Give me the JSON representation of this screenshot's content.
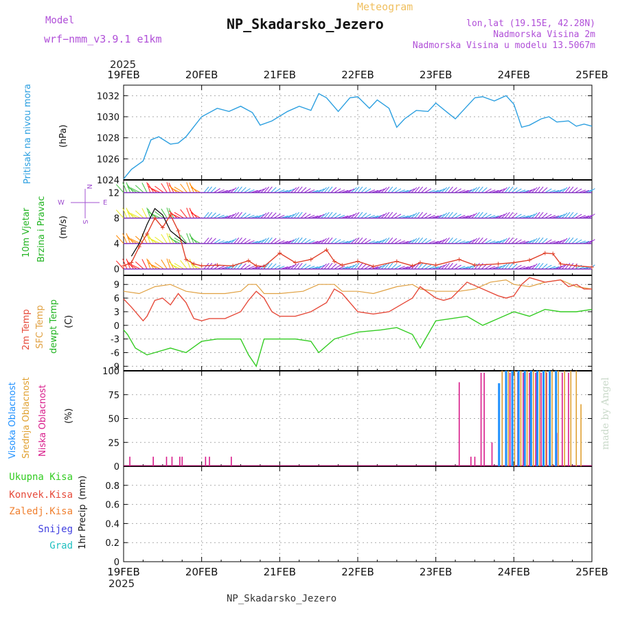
{
  "header": {
    "model_label": "Model",
    "model_value": "wrf−nmm_v3.9.1  e1km",
    "meteogram_label": "Meteogram",
    "station": "NP_Skadarsko_Jezero",
    "lonlat": "lon,lat (19.15E, 42.28N)",
    "elevation": "Nadmorska Visina 2m",
    "model_elevation": "Nadmorska Visina u modelu 13.5067m",
    "footer_station": "NP_Skadarsko_Jezero",
    "credit": "made by Angel"
  },
  "colors": {
    "pressure": "#2b9fe0",
    "temp2m": "#e64a3a",
    "sfc_temp": "#e0a040",
    "dewpoint": "#33cc22",
    "visoka": "#1e90ff",
    "srednja": "#e0a030",
    "niska": "#d81b8a",
    "wind_speed": "#e0402a",
    "wind_gust": "#000000",
    "title_purple": "#b04fd8"
  },
  "chart_data": [
    {
      "id": "pressure",
      "type": "line",
      "title": "",
      "year": "2025",
      "x_ticks": [
        "19FEB",
        "20FEB",
        "21FEB",
        "22FEB",
        "23FEB",
        "24FEB",
        "25FEB"
      ],
      "ylabel": "Pritisak na nivou mora",
      "yunit": "(hPa)",
      "ylim": [
        1024,
        1033
      ],
      "yticks": [
        1024,
        1026,
        1028,
        1030,
        1032
      ],
      "grid": true,
      "series": [
        {
          "x": [
            0,
            0.1,
            0.25,
            0.35,
            0.45,
            0.6,
            0.7,
            0.8,
            1.0,
            1.2,
            1.35,
            1.5,
            1.65,
            1.75,
            1.9,
            2.1,
            2.25,
            2.4,
            2.5,
            2.6,
            2.75,
            2.9,
            3.0,
            3.15,
            3.25,
            3.4,
            3.5,
            3.6,
            3.75,
            3.9,
            4.0,
            4.15,
            4.25,
            4.4,
            4.5,
            4.6,
            4.75,
            4.9,
            5.0,
            5.1,
            5.2,
            5.35,
            5.45,
            5.55,
            5.7,
            5.8,
            5.9,
            6.0
          ],
          "y": [
            1024.1,
            1025.0,
            1025.8,
            1027.8,
            1028.1,
            1027.4,
            1027.5,
            1028.1,
            1030.0,
            1030.8,
            1030.5,
            1031.0,
            1030.4,
            1029.2,
            1029.6,
            1030.5,
            1031.0,
            1030.6,
            1032.2,
            1031.8,
            1030.5,
            1031.8,
            1031.9,
            1030.8,
            1031.6,
            1030.8,
            1029.0,
            1029.8,
            1030.6,
            1030.5,
            1031.3,
            1030.4,
            1029.8,
            1031.0,
            1031.8,
            1031.9,
            1031.5,
            1032.0,
            1031.2,
            1029.0,
            1029.2,
            1029.8,
            1030.0,
            1029.5,
            1029.6,
            1029.1,
            1029.3,
            1029.1
          ]
        }
      ]
    },
    {
      "id": "wind",
      "type": "line",
      "title": "",
      "ylabels": [
        "10m Vjetar",
        "Brzina i Pravac"
      ],
      "yunit": "(m/s)",
      "compass": [
        "N",
        "W",
        "E",
        "S"
      ],
      "ylim": [
        -1,
        14
      ],
      "yticks": [
        0,
        4,
        8,
        12
      ],
      "barb_levels": [
        0,
        4,
        8,
        12
      ],
      "grid": true,
      "series": [
        {
          "name": "speed",
          "x": [
            0,
            0.1,
            0.2,
            0.3,
            0.4,
            0.5,
            0.6,
            0.7,
            0.8,
            0.9,
            1.0,
            1.2,
            1.4,
            1.6,
            1.7,
            1.8,
            2.0,
            2.2,
            2.4,
            2.6,
            2.7,
            2.8,
            3.0,
            3.2,
            3.5,
            3.7,
            3.8,
            4.0,
            4.3,
            4.5,
            4.8,
            5.0,
            5.2,
            5.4,
            5.5,
            5.6,
            5.8,
            6.0
          ],
          "y": [
            0.5,
            1.0,
            3.5,
            5.5,
            8.0,
            6.5,
            8.5,
            6.0,
            1.5,
            0.8,
            0.5,
            0.6,
            0.5,
            1.3,
            0.5,
            0.4,
            2.5,
            1.0,
            1.5,
            3.0,
            1.2,
            0.6,
            1.2,
            0.4,
            1.2,
            0.5,
            1.0,
            0.6,
            1.5,
            0.6,
            0.8,
            1.0,
            1.4,
            2.5,
            2.4,
            0.8,
            0.5,
            0.3
          ]
        },
        {
          "name": "gust",
          "x": [
            0.1,
            0.2,
            0.3,
            0.4,
            0.5,
            0.6,
            0.7,
            0.8
          ],
          "y": [
            2.0,
            4.0,
            7.0,
            9.5,
            8.5,
            6.0,
            5.0,
            4.0
          ]
        }
      ]
    },
    {
      "id": "temperature",
      "type": "line",
      "title": "",
      "ylabels": [
        "2m Temp",
        "SFC Temp",
        "dewpt Temp"
      ],
      "yunit": "(C)",
      "ylim": [
        -10,
        11
      ],
      "yticks": [
        9,
        6,
        3,
        0,
        -3,
        -6,
        -9
      ],
      "grid": true,
      "series": [
        {
          "name": "2m Temp",
          "x": [
            0,
            0.1,
            0.25,
            0.3,
            0.4,
            0.5,
            0.6,
            0.7,
            0.8,
            0.9,
            1.0,
            1.1,
            1.3,
            1.5,
            1.6,
            1.7,
            1.8,
            1.9,
            2.0,
            2.2,
            2.4,
            2.6,
            2.7,
            2.8,
            3.0,
            3.2,
            3.4,
            3.6,
            3.7,
            3.8,
            4.0,
            4.1,
            4.2,
            4.4,
            4.6,
            4.8,
            4.9,
            5.0,
            5.1,
            5.2,
            5.4,
            5.6,
            5.7,
            5.8,
            5.9,
            6.0
          ],
          "y": [
            5.8,
            4.0,
            1.0,
            2.0,
            5.5,
            6.0,
            4.5,
            7.0,
            5.0,
            1.5,
            1.0,
            1.5,
            1.5,
            3.0,
            5.5,
            7.5,
            6.0,
            3.0,
            2.0,
            2.0,
            3.0,
            5.0,
            8.0,
            7.0,
            3.0,
            2.5,
            3.0,
            5.0,
            6.0,
            8.5,
            6.0,
            5.5,
            6.0,
            9.5,
            8.0,
            6.5,
            6.0,
            6.5,
            9.0,
            10.5,
            9.5,
            10.0,
            8.5,
            9.0,
            8.0,
            8.0
          ]
        },
        {
          "name": "SFC Temp",
          "x": [
            0,
            0.2,
            0.4,
            0.6,
            0.8,
            1.0,
            1.3,
            1.5,
            1.6,
            1.7,
            1.8,
            2.0,
            2.3,
            2.5,
            2.7,
            2.8,
            3.0,
            3.2,
            3.5,
            3.7,
            3.8,
            4.0,
            4.3,
            4.5,
            4.7,
            4.9,
            5.0,
            5.2,
            5.4,
            5.6,
            5.8,
            6.0
          ],
          "y": [
            7.5,
            7.0,
            8.5,
            9.0,
            7.5,
            7.0,
            7.0,
            7.5,
            9.0,
            9.0,
            7.0,
            7.0,
            7.5,
            9.0,
            9.0,
            7.5,
            7.5,
            7.0,
            8.5,
            9.0,
            8.0,
            7.5,
            7.5,
            8.0,
            9.5,
            10.0,
            9.0,
            8.5,
            9.5,
            10.0,
            8.5,
            8.0
          ]
        },
        {
          "name": "dewpt Temp",
          "x": [
            0,
            0.05,
            0.15,
            0.3,
            0.4,
            0.6,
            0.8,
            1.0,
            1.2,
            1.4,
            1.5,
            1.6,
            1.7,
            1.8,
            2.0,
            2.2,
            2.4,
            2.5,
            2.7,
            2.9,
            3.0,
            3.3,
            3.5,
            3.7,
            3.8,
            4.0,
            4.2,
            4.4,
            4.6,
            4.8,
            5.0,
            5.2,
            5.4,
            5.6,
            5.8,
            6.0
          ],
          "y": [
            -1.0,
            -2.0,
            -5.0,
            -6.5,
            -6.0,
            -5.0,
            -6.0,
            -3.5,
            -3.0,
            -3.0,
            -3.0,
            -6.5,
            -9.0,
            -3.0,
            -3.0,
            -3.0,
            -3.5,
            -6.0,
            -3.0,
            -2.0,
            -1.5,
            -1.0,
            -0.5,
            -2.0,
            -5.0,
            1.0,
            1.5,
            2.0,
            0.0,
            1.5,
            3.0,
            2.0,
            3.5,
            3.0,
            3.0,
            3.5
          ]
        }
      ]
    },
    {
      "id": "cloud",
      "type": "bar",
      "title": "",
      "ylabels": [
        "Visoka Oblacnost",
        "Srednja Oblacnost",
        "Niska Oblacnost"
      ],
      "yunit": "(%)",
      "ylim": [
        0,
        100
      ],
      "yticks": [
        0,
        25,
        50,
        75,
        100
      ],
      "grid": true,
      "series": [
        {
          "name": "Niska Oblacnost",
          "x": [
            0.08,
            0.38,
            0.55,
            0.62,
            0.72,
            0.75,
            1.05,
            1.1,
            1.38,
            4.3,
            4.45,
            4.5,
            4.58,
            4.62,
            4.72,
            4.85,
            4.95,
            5.05,
            5.12,
            5.2,
            5.28,
            5.35,
            5.42,
            5.55,
            5.62,
            5.7
          ],
          "y": [
            10,
            10,
            10,
            10,
            10,
            10,
            10,
            10,
            10,
            88,
            10,
            10,
            98,
            98,
            25,
            98,
            98,
            98,
            98,
            98,
            98,
            98,
            98,
            35,
            98,
            98
          ]
        },
        {
          "name": "Visoka Oblacnost",
          "x": [
            4.81,
            4.9,
            4.98,
            5.06,
            5.14,
            5.22,
            5.3,
            5.38,
            5.46,
            5.54
          ],
          "y": [
            87,
            100,
            100,
            100,
            100,
            100,
            100,
            100,
            100,
            100
          ]
        },
        {
          "name": "Srednja Oblacnost",
          "x": [
            4.85,
            4.93,
            5.01,
            5.09,
            5.17,
            5.25,
            5.33,
            5.41,
            5.49,
            5.57,
            5.65,
            5.73,
            5.8,
            5.86
          ],
          "y": [
            100,
            100,
            100,
            100,
            100,
            100,
            100,
            100,
            100,
            100,
            100,
            100,
            100,
            65
          ]
        }
      ]
    },
    {
      "id": "precip",
      "type": "bar",
      "title": "",
      "ylabel": "1hr Precip",
      "yunit": "(mm)",
      "ylim": [
        0,
        1
      ],
      "yticks": [
        0,
        0.2,
        0.4,
        0.6,
        0.8
      ],
      "grid": true,
      "legend": [
        "Ukupna Kisa",
        "Konvek.Kisa",
        "Zaledj.Kisa",
        "Snijeg",
        "Grad"
      ],
      "legend_colors": [
        "#33cc22",
        "#e64a3a",
        "#f08030",
        "#4040e0",
        "#20c0c0"
      ],
      "values": []
    }
  ],
  "axis_bottom": {
    "year": "2025",
    "ticks": [
      "19FEB",
      "20FEB",
      "21FEB",
      "22FEB",
      "23FEB",
      "24FEB",
      "25FEB"
    ]
  }
}
